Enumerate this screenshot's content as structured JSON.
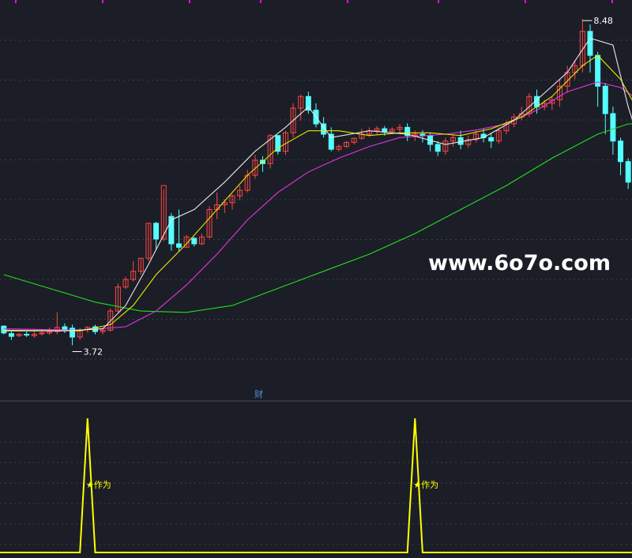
{
  "chart_data": [
    {
      "type": "candlestick",
      "price_scale": [
        3.0,
        8.7
      ],
      "high_label": "8.48",
      "low_label": "3.72",
      "fin_marker": "财",
      "colors": {
        "up": "#ff4646",
        "down": "#54ffff",
        "ma5": "#e8e8e8",
        "ma10": "#e8e800",
        "ma20": "#e832e8",
        "ma60": "#22dd22",
        "grid": "#3a3f4a",
        "top_ticks": "#ff00ff"
      },
      "candles": [
        [
          4.0,
          4.01,
          3.9,
          3.88
        ],
        [
          3.89,
          3.92,
          3.85,
          3.8
        ],
        [
          3.86,
          3.9,
          3.88,
          3.84
        ],
        [
          3.88,
          3.92,
          3.87,
          3.84
        ],
        [
          3.86,
          3.93,
          3.88,
          3.83
        ],
        [
          3.89,
          3.95,
          3.9,
          3.86
        ],
        [
          3.9,
          3.98,
          3.92,
          3.87
        ],
        [
          3.92,
          4.2,
          3.98,
          3.88
        ],
        [
          3.99,
          4.04,
          3.95,
          3.9
        ],
        [
          3.97,
          4.02,
          3.84,
          3.72
        ],
        [
          3.84,
          3.97,
          3.94,
          3.8
        ],
        [
          3.95,
          4.0,
          3.98,
          3.9
        ],
        [
          3.99,
          4.02,
          3.92,
          3.88
        ],
        [
          3.92,
          3.96,
          3.94,
          3.88
        ],
        [
          3.94,
          4.26,
          4.22,
          3.92
        ],
        [
          4.22,
          4.62,
          4.57,
          4.2
        ],
        [
          4.57,
          4.72,
          4.68,
          4.54
        ],
        [
          4.68,
          4.95,
          4.8,
          4.65
        ],
        [
          4.8,
          4.99,
          4.99,
          4.75
        ],
        [
          4.99,
          5.5,
          5.5,
          4.95
        ],
        [
          5.5,
          5.52,
          5.27,
          5.12
        ],
        [
          5.27,
          6.0,
          6.05,
          5.24
        ],
        [
          5.6,
          5.65,
          5.2,
          5.1
        ],
        [
          5.2,
          5.7,
          5.15,
          5.09
        ],
        [
          5.15,
          5.33,
          5.3,
          5.15
        ],
        [
          5.28,
          5.3,
          5.2,
          5.16
        ],
        [
          5.2,
          5.35,
          5.3,
          5.18
        ],
        [
          5.3,
          5.75,
          5.7,
          5.28
        ],
        [
          5.7,
          5.95,
          5.77,
          5.56
        ],
        [
          5.77,
          5.85,
          5.8,
          5.65
        ],
        [
          5.8,
          5.92,
          5.9,
          5.7
        ],
        [
          5.9,
          6.05,
          5.98,
          5.84
        ],
        [
          5.98,
          6.28,
          6.2,
          5.95
        ],
        [
          6.2,
          6.5,
          6.42,
          6.15
        ],
        [
          6.42,
          6.48,
          6.37,
          6.25
        ],
        [
          6.37,
          6.8,
          6.78,
          6.3
        ],
        [
          6.78,
          6.7,
          6.55,
          6.5
        ],
        [
          6.55,
          6.85,
          6.82,
          6.5
        ],
        [
          6.82,
          7.25,
          7.18,
          6.75
        ],
        [
          7.18,
          7.38,
          7.35,
          7.0
        ],
        [
          7.35,
          7.42,
          7.15,
          7.1
        ],
        [
          7.15,
          7.25,
          6.95,
          6.9
        ],
        [
          6.95,
          7.05,
          6.8,
          6.75
        ],
        [
          6.8,
          6.9,
          6.58,
          6.55
        ],
        [
          6.58,
          6.65,
          6.62,
          6.55
        ],
        [
          6.62,
          6.7,
          6.68,
          6.6
        ],
        [
          6.68,
          6.75,
          6.74,
          6.65
        ],
        [
          6.74,
          6.88,
          6.8,
          6.72
        ],
        [
          6.8,
          6.9,
          6.85,
          6.76
        ],
        [
          6.85,
          6.92,
          6.88,
          6.8
        ],
        [
          6.88,
          6.92,
          6.84,
          6.78
        ],
        [
          6.84,
          6.9,
          6.87,
          6.8
        ],
        [
          6.87,
          6.95,
          6.9,
          6.82
        ],
        [
          6.9,
          6.96,
          6.78,
          6.7
        ],
        [
          6.78,
          6.85,
          6.8,
          6.7
        ],
        [
          6.8,
          6.86,
          6.78,
          6.68
        ],
        [
          6.78,
          6.82,
          6.65,
          6.55
        ],
        [
          6.65,
          6.7,
          6.55,
          6.48
        ],
        [
          6.55,
          6.75,
          6.7,
          6.5
        ],
        [
          6.7,
          6.8,
          6.75,
          6.62
        ],
        [
          6.75,
          6.85,
          6.65,
          6.58
        ],
        [
          6.65,
          6.78,
          6.72,
          6.6
        ],
        [
          6.72,
          6.85,
          6.8,
          6.68
        ],
        [
          6.8,
          6.88,
          6.75,
          6.68
        ],
        [
          6.75,
          6.82,
          6.7,
          6.6
        ],
        [
          6.7,
          6.9,
          6.85,
          6.66
        ],
        [
          6.85,
          7.0,
          6.95,
          6.8
        ],
        [
          6.95,
          7.1,
          7.05,
          6.9
        ],
        [
          7.05,
          7.2,
          7.1,
          7.0
        ],
        [
          7.1,
          7.4,
          7.35,
          7.05
        ],
        [
          7.35,
          7.45,
          7.2,
          7.1
        ],
        [
          7.2,
          7.3,
          7.25,
          7.15
        ],
        [
          7.25,
          7.35,
          7.3,
          7.15
        ],
        [
          7.3,
          7.6,
          7.5,
          7.2
        ],
        [
          7.5,
          7.8,
          7.7,
          7.4
        ],
        [
          7.7,
          7.88,
          7.8,
          7.6
        ],
        [
          7.8,
          8.48,
          8.3,
          7.7
        ],
        [
          8.3,
          8.4,
          7.95,
          7.7
        ],
        [
          7.95,
          8.0,
          7.5,
          7.2
        ],
        [
          7.5,
          7.55,
          7.1,
          6.8
        ],
        [
          7.1,
          7.2,
          6.7,
          6.5
        ],
        [
          6.7,
          6.75,
          6.4,
          6.2
        ],
        [
          6.4,
          6.45,
          6.1,
          6.0
        ]
      ],
      "ma_lines": {
        "ma5": [
          [
            0,
            3.93
          ],
          [
            8,
            3.93
          ],
          [
            13,
            3.96
          ],
          [
            16,
            4.3
          ],
          [
            19,
            4.9
          ],
          [
            22,
            5.55
          ],
          [
            25,
            5.7
          ],
          [
            29,
            6.1
          ],
          [
            33,
            6.55
          ],
          [
            37,
            6.9
          ],
          [
            40,
            7.2
          ],
          [
            43,
            6.75
          ],
          [
            48,
            6.85
          ],
          [
            53,
            6.8
          ],
          [
            58,
            6.65
          ],
          [
            63,
            6.75
          ],
          [
            67,
            7.0
          ],
          [
            70,
            7.3
          ],
          [
            74,
            7.7
          ],
          [
            77,
            8.2
          ],
          [
            80,
            8.1
          ],
          [
            82,
            7.2
          ],
          [
            84,
            6.5
          ]
        ],
        "ma10": [
          [
            0,
            3.94
          ],
          [
            10,
            3.93
          ],
          [
            14,
            4.02
          ],
          [
            17,
            4.3
          ],
          [
            20,
            4.75
          ],
          [
            24,
            5.2
          ],
          [
            28,
            5.7
          ],
          [
            32,
            6.2
          ],
          [
            36,
            6.6
          ],
          [
            40,
            6.85
          ],
          [
            44,
            6.85
          ],
          [
            48,
            6.78
          ],
          [
            52,
            6.82
          ],
          [
            56,
            6.82
          ],
          [
            60,
            6.78
          ],
          [
            64,
            6.88
          ],
          [
            68,
            7.05
          ],
          [
            72,
            7.35
          ],
          [
            76,
            7.8
          ],
          [
            78,
            7.95
          ],
          [
            81,
            7.6
          ],
          [
            84,
            7.0
          ]
        ],
        "ma20": [
          [
            0,
            3.96
          ],
          [
            10,
            3.94
          ],
          [
            16,
            3.99
          ],
          [
            20,
            4.22
          ],
          [
            24,
            4.6
          ],
          [
            28,
            5.05
          ],
          [
            32,
            5.55
          ],
          [
            36,
            5.95
          ],
          [
            40,
            6.25
          ],
          [
            44,
            6.45
          ],
          [
            48,
            6.62
          ],
          [
            52,
            6.75
          ],
          [
            58,
            6.8
          ],
          [
            62,
            6.86
          ],
          [
            66,
            6.95
          ],
          [
            70,
            7.15
          ],
          [
            74,
            7.42
          ],
          [
            78,
            7.56
          ],
          [
            81,
            7.48
          ],
          [
            84,
            7.25
          ]
        ],
        "ma60": [
          [
            0,
            4.75
          ],
          [
            6,
            4.55
          ],
          [
            12,
            4.35
          ],
          [
            18,
            4.22
          ],
          [
            24,
            4.2
          ],
          [
            30,
            4.3
          ],
          [
            36,
            4.55
          ],
          [
            42,
            4.8
          ],
          [
            48,
            5.05
          ],
          [
            54,
            5.35
          ],
          [
            60,
            5.7
          ],
          [
            66,
            6.05
          ],
          [
            72,
            6.45
          ],
          [
            78,
            6.8
          ],
          [
            82,
            6.95
          ],
          [
            84,
            6.95
          ]
        ]
      }
    },
    {
      "type": "line",
      "ylim": [
        0,
        1
      ],
      "color": "#ffff00",
      "series_values": [
        [
          0,
          0
        ],
        [
          10,
          0
        ],
        [
          11,
          1
        ],
        [
          12,
          0
        ],
        [
          53,
          0
        ],
        [
          54,
          1
        ],
        [
          55,
          0
        ],
        [
          84,
          0
        ]
      ],
      "signal_label": "★作为",
      "signal_indices": [
        11,
        54
      ]
    }
  ],
  "watermark": "www.6o7o.com"
}
